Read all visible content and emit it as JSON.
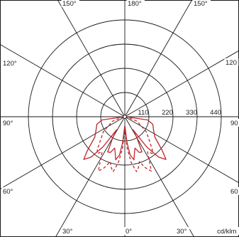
{
  "chart_data": {
    "type": "polar",
    "unit": "cd/klm",
    "radial_ticks": [
      "110",
      "220",
      "330",
      "440"
    ],
    "radial_values": [
      110,
      220,
      330,
      440
    ],
    "rmax": 440,
    "angle_labels": {
      "top_left": "150°",
      "top": "180°",
      "top_right": "150°",
      "left_upper": "120°",
      "right_upper": "120",
      "left_mid": "90°",
      "right_mid": "90",
      "left_lower": "60°",
      "right_lower": "60",
      "bottom_left": "30°",
      "bottom": "0°",
      "bottom_right": "30°"
    },
    "spoke_angles_deg": [
      0,
      30,
      60,
      90,
      120,
      150,
      180,
      210,
      240,
      270,
      300,
      330
    ],
    "series": [
      {
        "style": "solid",
        "color": "#c0262d",
        "points": [
          {
            "angle": 0,
            "r": 40
          },
          {
            "angle": 5,
            "r": 120
          },
          {
            "angle": 8,
            "r": 175
          },
          {
            "angle": 12,
            "r": 200
          },
          {
            "angle": 15,
            "r": 170
          },
          {
            "angle": 18,
            "r": 150
          },
          {
            "angle": 22,
            "r": 175
          },
          {
            "angle": 26,
            "r": 178
          },
          {
            "angle": 30,
            "r": 110
          },
          {
            "angle": 32,
            "r": 70
          },
          {
            "angle": 36,
            "r": 170
          },
          {
            "angle": 40,
            "r": 240
          },
          {
            "angle": 44,
            "r": 270
          },
          {
            "angle": 48,
            "r": 230
          },
          {
            "angle": 56,
            "r": 165
          },
          {
            "angle": 65,
            "r": 145
          },
          {
            "angle": 75,
            "r": 132
          },
          {
            "angle": 82,
            "r": 105
          },
          {
            "angle": 88,
            "r": 5
          }
        ]
      },
      {
        "style": "dashed",
        "color": "#c0262d",
        "points": [
          {
            "angle": 0,
            "r": 40
          },
          {
            "angle": 4,
            "r": 140
          },
          {
            "angle": 8,
            "r": 210
          },
          {
            "angle": 12,
            "r": 255
          },
          {
            "angle": 15,
            "r": 240
          },
          {
            "angle": 18,
            "r": 215
          },
          {
            "angle": 22,
            "r": 250
          },
          {
            "angle": 26,
            "r": 275
          },
          {
            "angle": 30,
            "r": 220
          },
          {
            "angle": 33,
            "r": 190
          },
          {
            "angle": 37,
            "r": 210
          },
          {
            "angle": 40,
            "r": 195
          },
          {
            "angle": 45,
            "r": 160
          },
          {
            "angle": 55,
            "r": 120
          },
          {
            "angle": 70,
            "r": 60
          },
          {
            "angle": 88,
            "r": 5
          }
        ]
      }
    ]
  }
}
